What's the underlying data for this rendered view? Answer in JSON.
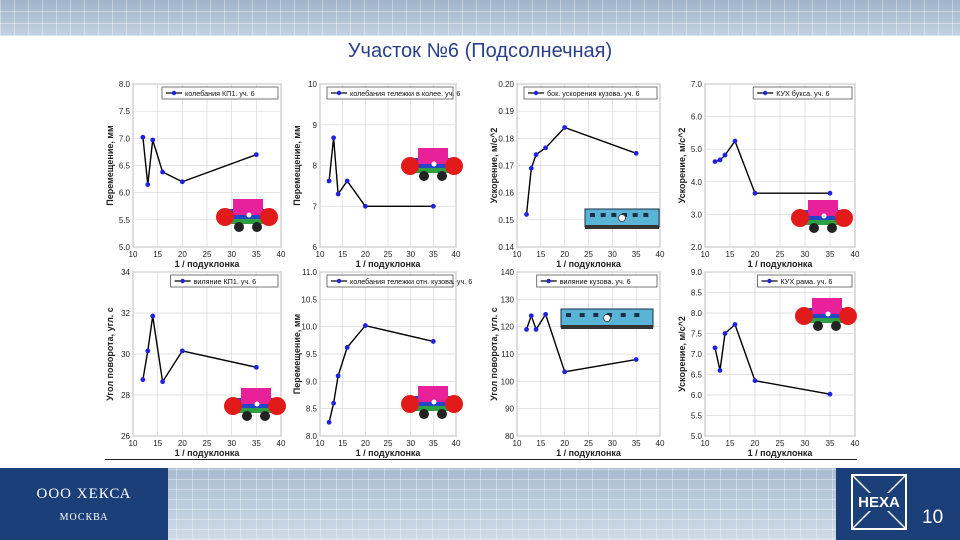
{
  "slide": {
    "title": "Участок №6 (Подсолнечная)",
    "company": "ООО ХЕКСА",
    "city": "МОСКВА",
    "logo_text": "HEXA",
    "page_number": "10"
  },
  "colors": {
    "navy": "#1b3f78",
    "series_line": "#000000",
    "series_marker": "#1f22e0",
    "title": "#2a3f8c"
  },
  "chart_data": [
    {
      "type": "line",
      "legend": "колебания КП1. уч. 6",
      "xlabel": "1 / подуклонка",
      "ylabel": "Перемещение, мм",
      "x": [
        12,
        13,
        14,
        16,
        20,
        35
      ],
      "y": [
        7.02,
        6.15,
        6.97,
        6.38,
        6.2,
        6.7
      ],
      "xlim": [
        10,
        40
      ],
      "xticks": [
        10,
        15,
        20,
        25,
        30,
        35,
        40
      ],
      "ylim": [
        5.0,
        8.0
      ],
      "yticks": [
        "5.0",
        "5.5",
        "6.0",
        "6.5",
        "7.0",
        "7.5",
        "8.0"
      ],
      "grid": true,
      "legend_position": "top-right"
    },
    {
      "type": "line",
      "legend": "колебания тележки в колее. уч. 6",
      "xlabel": "1 / подуклонка",
      "ylabel": "Перемещение, мм",
      "x": [
        12,
        13,
        14,
        16,
        20,
        35
      ],
      "y": [
        7.62,
        8.68,
        7.3,
        7.62,
        7.0,
        7.0
      ],
      "xlim": [
        10,
        40
      ],
      "xticks": [
        10,
        15,
        20,
        25,
        30,
        35,
        40
      ],
      "ylim": [
        6,
        10
      ],
      "yticks": [
        "6",
        "7",
        "8",
        "9",
        "10"
      ],
      "grid": true,
      "legend_position": "top-right"
    },
    {
      "type": "line",
      "legend": "бок. ускорения кузова. уч. 6",
      "xlabel": "1 / подуклонка",
      "ylabel": "Ускорение, м/с^2",
      "x": [
        12,
        13,
        14,
        16,
        20,
        35
      ],
      "y": [
        0.152,
        0.169,
        0.174,
        0.1765,
        0.184,
        0.1745
      ],
      "xlim": [
        10,
        40
      ],
      "xticks": [
        10,
        15,
        20,
        25,
        30,
        35,
        40
      ],
      "ylim": [
        0.14,
        0.2
      ],
      "yticks": [
        "0.14",
        "0.15",
        "0.16",
        "0.17",
        "0.18",
        "0.19",
        "0.20"
      ],
      "grid": true,
      "legend_position": "top-right"
    },
    {
      "type": "line",
      "legend": "КУХ букса. уч. 6",
      "xlabel": "1 / подуклонка",
      "ylabel": "Ускорение, м/с^2",
      "x": [
        12,
        13,
        14,
        16,
        20,
        35
      ],
      "y": [
        4.62,
        4.67,
        4.82,
        5.25,
        3.65,
        3.65
      ],
      "xlim": [
        10,
        40
      ],
      "xticks": [
        10,
        15,
        20,
        25,
        30,
        35,
        40
      ],
      "ylim": [
        2.0,
        7.0
      ],
      "yticks": [
        "2.0",
        "3.0",
        "4.0",
        "5.0",
        "6.0",
        "7.0"
      ],
      "grid": true,
      "legend_position": "top-right"
    },
    {
      "type": "line",
      "legend": "виляние КП1. уч. 6",
      "xlabel": "1 / подуклонка",
      "ylabel": "Угол поворота, угл. с",
      "x": [
        12,
        13,
        14,
        16,
        20,
        35
      ],
      "y": [
        28.75,
        30.15,
        31.85,
        28.65,
        30.15,
        29.35
      ],
      "xlim": [
        10,
        40
      ],
      "xticks": [
        10,
        15,
        20,
        25,
        30,
        35,
        40
      ],
      "ylim": [
        26,
        34
      ],
      "yticks": [
        "26",
        "28",
        "30",
        "32",
        "34"
      ],
      "grid": true,
      "legend_position": "top-right"
    },
    {
      "type": "line",
      "legend": "колебания тележки отн. кузова. уч. 6",
      "xlabel": "1 / подуклонка",
      "ylabel": "Перемещение, мм",
      "x": [
        12,
        13,
        14,
        16,
        20,
        35
      ],
      "y": [
        8.25,
        8.6,
        9.1,
        9.62,
        10.02,
        9.73
      ],
      "xlim": [
        10,
        40
      ],
      "xticks": [
        10,
        15,
        20,
        25,
        30,
        35,
        40
      ],
      "ylim": [
        8.0,
        11.0
      ],
      "yticks": [
        "8.0",
        "8.5",
        "9.0",
        "9.5",
        "10.0",
        "10.5",
        "11.0"
      ],
      "grid": true,
      "legend_position": "top-right"
    },
    {
      "type": "line",
      "legend": "виляние кузова. уч. 6",
      "xlabel": "1 / подуклонка",
      "ylabel": "Угол поворота, угл. с",
      "x": [
        12,
        13,
        14,
        16,
        20,
        35
      ],
      "y": [
        119,
        124,
        119,
        124.5,
        103.5,
        108
      ],
      "xlim": [
        10,
        40
      ],
      "xticks": [
        10,
        15,
        20,
        25,
        30,
        35,
        40
      ],
      "ylim": [
        80,
        140
      ],
      "yticks": [
        "80",
        "90",
        "100",
        "110",
        "120",
        "130",
        "140"
      ],
      "grid": true,
      "legend_position": "top-right"
    },
    {
      "type": "line",
      "legend": "КУХ рама. уч. 6",
      "xlabel": "1 / подуклонка",
      "ylabel": "Ускорение, м/с^2",
      "x": [
        12,
        13,
        14,
        16,
        20,
        35
      ],
      "y": [
        7.15,
        6.6,
        7.5,
        7.72,
        6.35,
        6.02
      ],
      "xlim": [
        10,
        40
      ],
      "xticks": [
        10,
        15,
        20,
        25,
        30,
        35,
        40
      ],
      "ylim": [
        5.0,
        9.0
      ],
      "yticks": [
        "5.0",
        "5.5",
        "6.0",
        "6.5",
        "7.0",
        "7.5",
        "8.0",
        "8.5",
        "9.0"
      ],
      "grid": true,
      "legend_position": "top-right"
    }
  ]
}
